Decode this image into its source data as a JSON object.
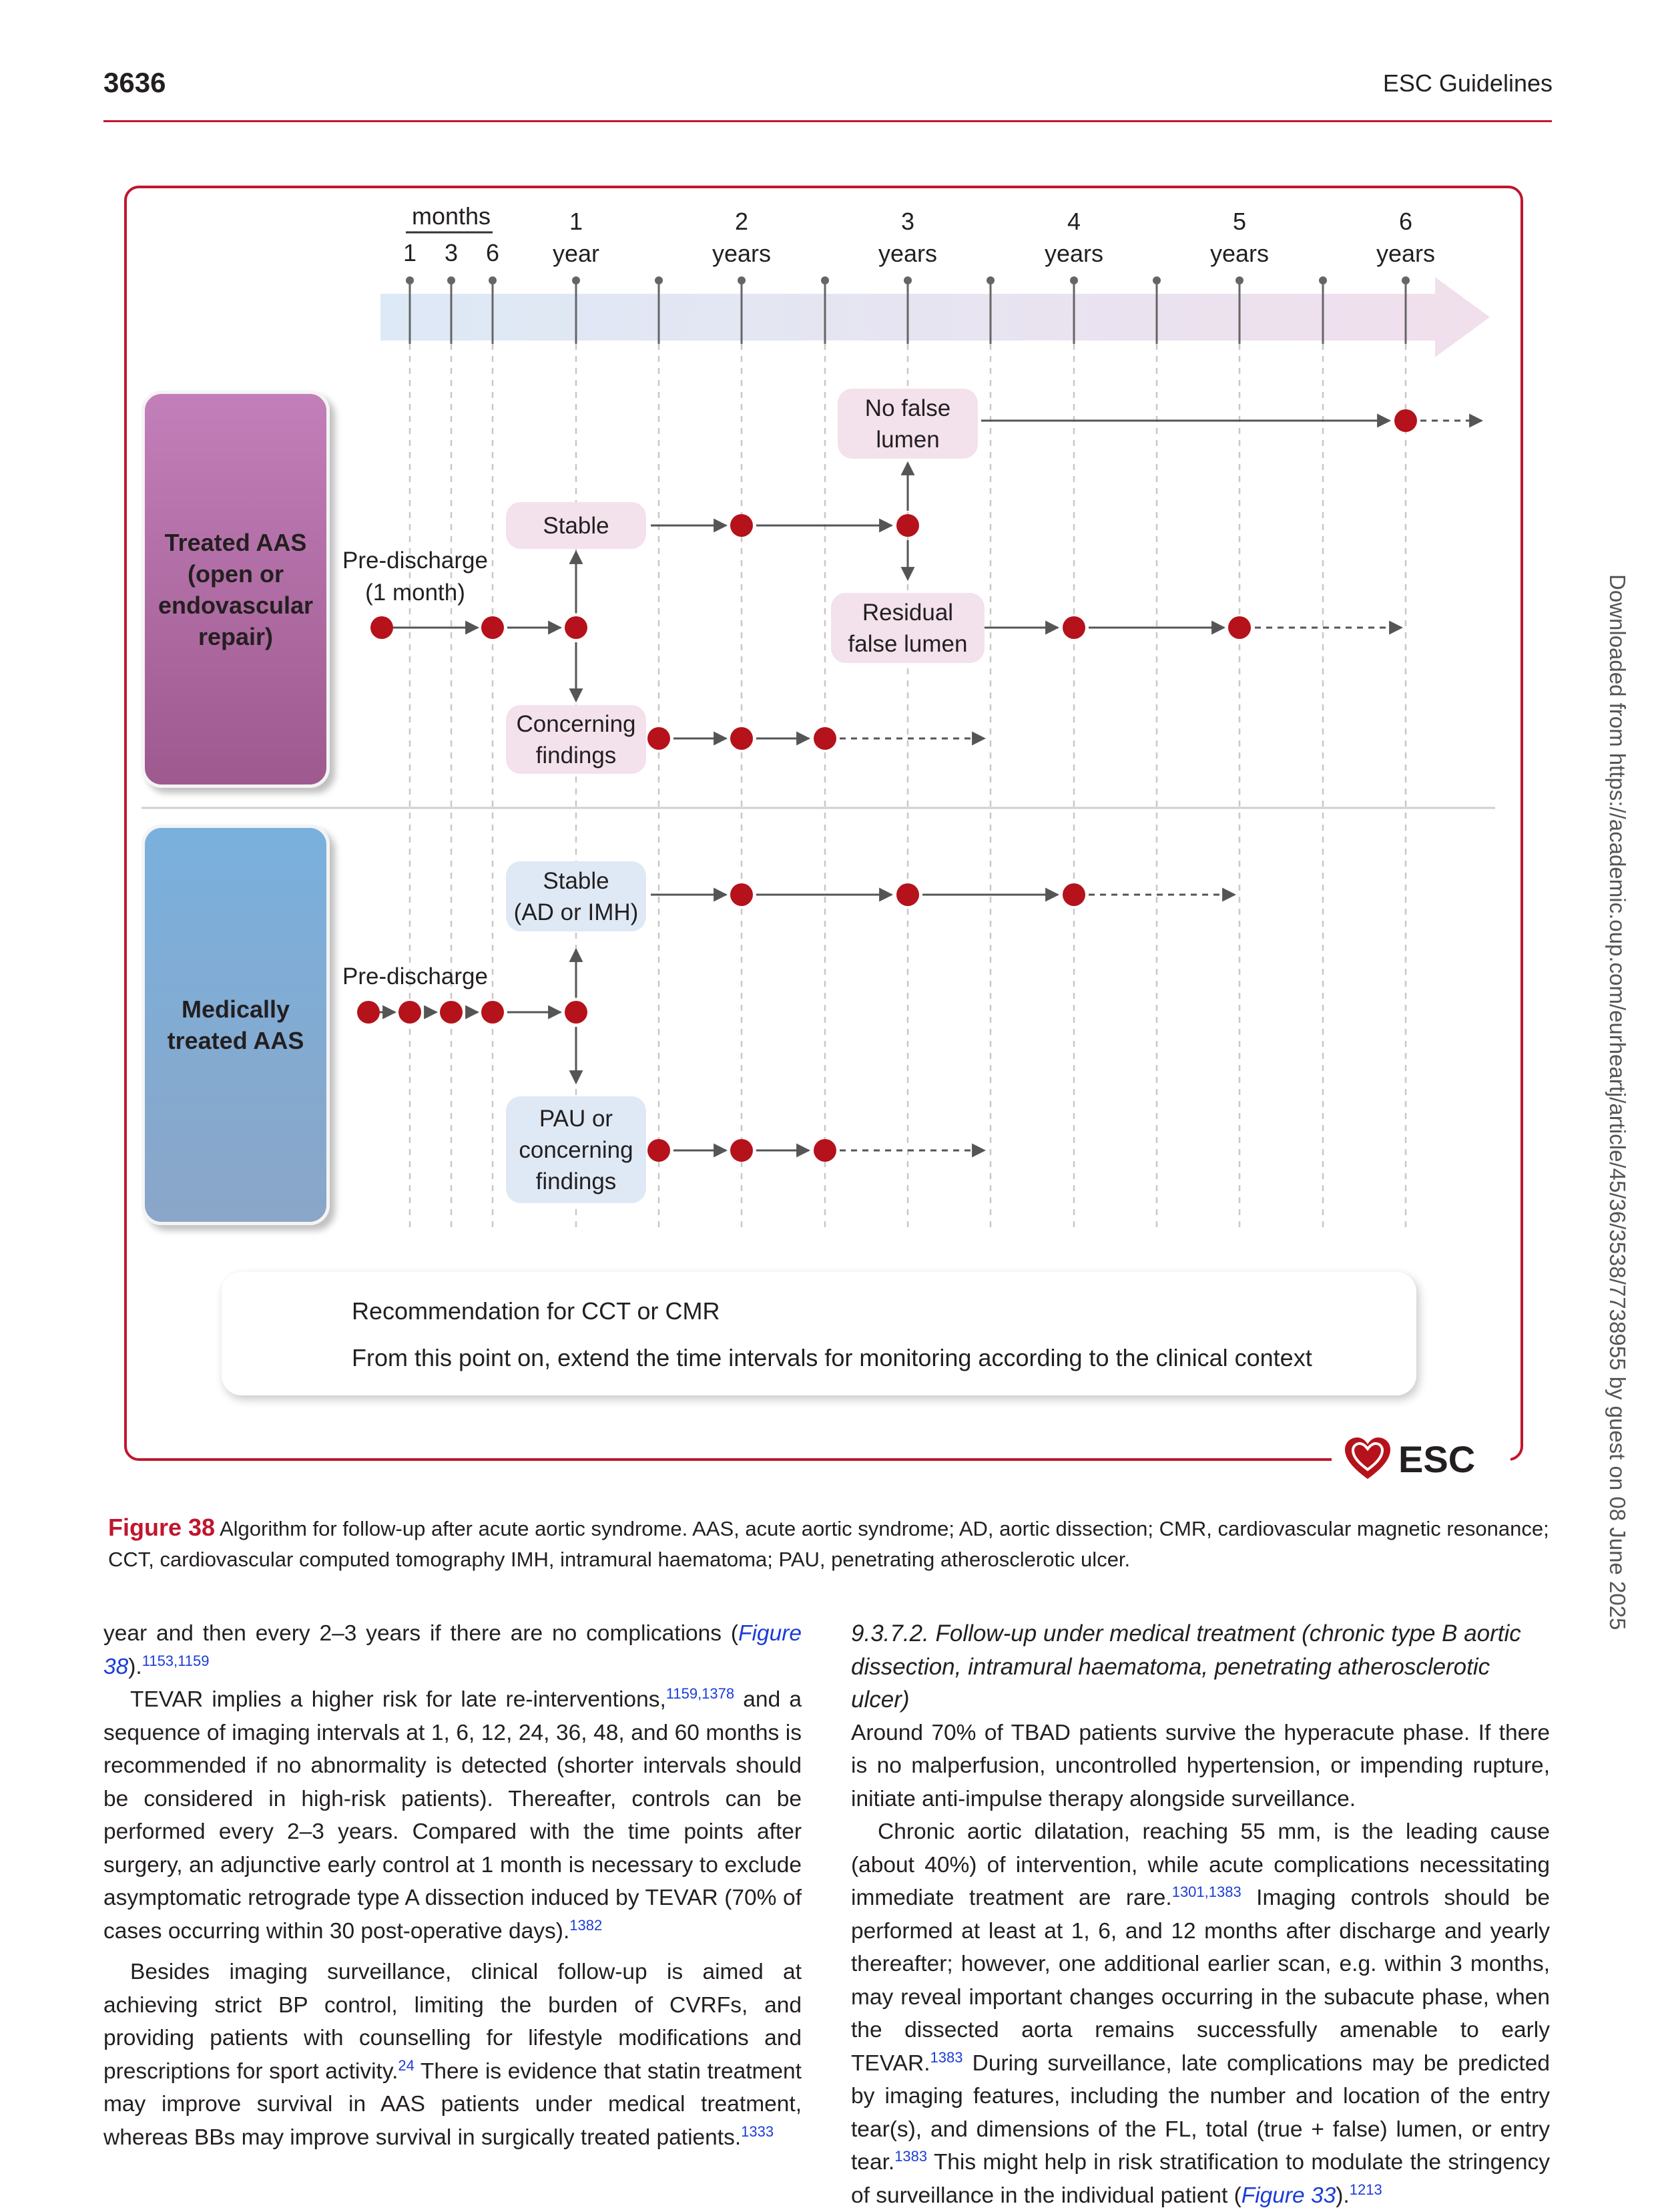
{
  "header": {
    "page_number": "3636",
    "journal": "ESC Guidelines"
  },
  "sidebar": {
    "download_note": "Downloaded from https://academic.oup.com/eurheartj/article/45/36/3538/7738955 by guest on 08 June 2025"
  },
  "figure": {
    "timeline": {
      "months_label": "months",
      "month_ticks": [
        "1",
        "3",
        "6"
      ],
      "year_ticks": [
        "1\nyear",
        "2\nyears",
        "3\nyears",
        "4\nyears",
        "5\nyears",
        "6\nyears"
      ]
    },
    "treated": {
      "group_label": "Treated AAS\n(open or\nendovascular\nrepair)",
      "predischarge": "Pre-discharge",
      "one_month": "(1 month)",
      "stable": "Stable",
      "concerning": "Concerning\nfindings",
      "no_false_lumen": "No false\nlumen",
      "residual": "Residual\nfalse lumen"
    },
    "medical": {
      "group_label": "Medically\ntreated AAS",
      "predischarge": "Pre-discharge",
      "stable": "Stable\n(AD or IMH)",
      "pau": "PAU or\nconcerning\nfindings"
    },
    "legend": {
      "dot_label": "Recommendation for CCT or CMR",
      "arrow_label": "From this point on, extend the time intervals for monitoring according to the clinical context"
    },
    "logo": "ESC",
    "colors": {
      "dot": "#b5121b",
      "frame": "#c0162f",
      "pink_box": "#f3e1ec",
      "blue_box": "#dfe9f5"
    }
  },
  "caption": {
    "label": "Figure 38",
    "text": " Algorithm for follow-up after acute aortic syndrome. AAS, acute aortic syndrome; AD, aortic dissection; CMR, cardiovascular magnetic resonance; CCT, cardiovascular computed tomography IMH, intramural haematoma; PAU, penetrating atherosclerotic ulcer."
  },
  "left_column": {
    "p1_a": "year and then every 2–3 years if there are no complications (",
    "p1_figref": "Figure 38",
    "p1_b": ").",
    "p1_ref": "1153,1159",
    "p2_a": "TEVAR implies a higher risk for late re-interventions,",
    "p2_ref1": "1159,1378",
    "p2_b": " and a sequence of imaging intervals at 1, 6, 12, 24, 36, 48, and 60 months is recommended if no abnormality is detected (shorter intervals should be considered in high-risk patients). Thereafter, controls can be performed every 2–3 years. Compared with the time points after surgery, an adjunctive early control at 1 month is necessary to exclude asymptomatic retrograde type A dissection induced by TEVAR (70% of cases occurring within 30 post-operative days).",
    "p2_ref2": "1382",
    "p3_a": "Besides imaging surveillance, clinical follow-up is aimed at achieving strict BP control, limiting the burden of CVRFs, and providing patients with counselling for lifestyle modifications and prescriptions for sport activity.",
    "p3_ref1": "24",
    "p3_b": " There is evidence that statin treatment may improve survival in AAS patients under medical treatment, whereas BBs may improve survival in surgically treated patients.",
    "p3_ref2": "1333"
  },
  "right_column": {
    "section_title": "9.3.7.2. Follow-up under medical treatment (chronic type B aortic dissection, intramural haematoma, penetrating atherosclerotic ulcer)",
    "p1": "Around 70% of TBAD patients survive the hyperacute phase. If there is no malperfusion, uncontrolled hypertension, or impending rupture, initiate anti-impulse therapy alongside surveillance.",
    "p2_a": "Chronic aortic dilatation, reaching 55 mm, is the leading cause (about 40%) of intervention, while acute complications necessitating immediate treatment are rare.",
    "p2_ref1": "1301,1383",
    "p2_b": " Imaging controls should be performed at least at 1, 6, and 12 months after discharge and yearly thereafter; however, one additional earlier scan, e.g. within 3 months, may reveal important changes occurring in the subacute phase, when the dissected aorta remains successfully amenable to early TEVAR.",
    "p2_ref2": "1383",
    "p2_c": " During surveillance, late complications may be predicted by imaging features, including the number and location of the entry tear(s), and dimensions of the FL, total (true + false) lumen, or entry tear.",
    "p2_ref3": "1383",
    "p2_d": " This might help in risk stratification to modulate the stringency of surveillance in the individual patient (",
    "p2_figref": "Figure 33",
    "p2_e": ").",
    "p2_ref4": "1213"
  }
}
